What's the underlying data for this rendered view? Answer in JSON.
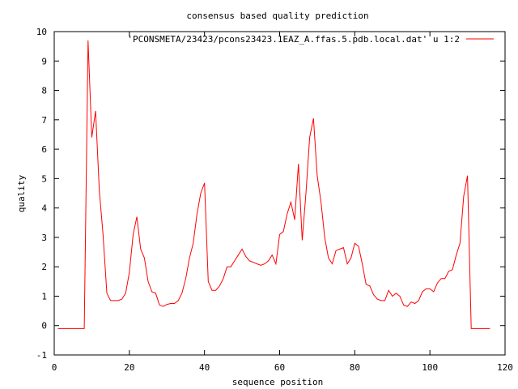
{
  "chart_data": {
    "type": "line",
    "title": "consensus based quality prediction",
    "xlabel": "sequence position",
    "ylabel": "quality",
    "xlim": [
      0,
      120
    ],
    "ylim": [
      -1,
      10
    ],
    "xticks": [
      "0",
      "20",
      "40",
      "60",
      "80",
      "100",
      "120"
    ],
    "yticks": [
      "-1",
      "0",
      "1",
      "2",
      "3",
      "4",
      "5",
      "6",
      "7",
      "8",
      "9",
      "10"
    ],
    "grid": false,
    "legend_position": "top-right",
    "series": [
      {
        "name": "'PCONSMETA/23423/pcons23423.1EAZ_A.ffas.5.pdb.local.dat' u 1:2",
        "color": "#ff0000",
        "x": [
          1,
          2,
          3,
          4,
          5,
          6,
          7,
          8,
          9,
          10,
          11,
          12,
          13,
          14,
          15,
          16,
          17,
          18,
          19,
          20,
          21,
          22,
          23,
          24,
          25,
          26,
          27,
          28,
          29,
          30,
          31,
          32,
          33,
          34,
          35,
          36,
          37,
          38,
          39,
          40,
          41,
          42,
          43,
          44,
          45,
          46,
          47,
          48,
          49,
          50,
          51,
          52,
          53,
          54,
          55,
          56,
          57,
          58,
          59,
          60,
          61,
          62,
          63,
          64,
          65,
          66,
          67,
          68,
          69,
          70,
          71,
          72,
          73,
          74,
          75,
          76,
          77,
          78,
          79,
          80,
          81,
          82,
          83,
          84,
          85,
          86,
          87,
          88,
          89,
          90,
          91,
          92,
          93,
          94,
          95,
          96,
          97,
          98,
          99,
          100,
          101,
          102,
          103,
          104,
          105,
          106,
          107,
          108,
          109,
          110,
          111,
          112,
          113,
          114,
          115,
          116
        ],
        "y": [
          -0.1,
          -0.1,
          -0.1,
          -0.1,
          -0.1,
          -0.1,
          -0.1,
          -0.1,
          9.7,
          6.4,
          7.3,
          4.6,
          3.1,
          1.1,
          0.85,
          0.85,
          0.85,
          0.9,
          1.1,
          1.8,
          3.1,
          3.7,
          2.6,
          2.3,
          1.5,
          1.15,
          1.1,
          0.7,
          0.65,
          0.72,
          0.75,
          0.75,
          0.85,
          1.1,
          1.6,
          2.3,
          2.8,
          3.8,
          4.5,
          4.85,
          1.5,
          1.2,
          1.2,
          1.35,
          1.6,
          2.0,
          2.0,
          2.2,
          2.4,
          2.6,
          2.35,
          2.2,
          2.15,
          2.1,
          2.05,
          2.1,
          2.2,
          2.4,
          2.1,
          3.1,
          3.2,
          3.8,
          4.2,
          3.6,
          5.5,
          2.9,
          4.5,
          6.4,
          7.05,
          5.1,
          4.2,
          3.0,
          2.3,
          2.1,
          2.55,
          2.6,
          2.65,
          2.1,
          2.3,
          2.8,
          2.7,
          2.1,
          1.4,
          1.35,
          1.05,
          0.9,
          0.85,
          0.85,
          1.2,
          1.0,
          1.1,
          1.0,
          0.7,
          0.65,
          0.8,
          0.75,
          0.85,
          1.15,
          1.25,
          1.25,
          1.15,
          1.45,
          1.6,
          1.6,
          1.85,
          1.9,
          2.4,
          2.8,
          4.4,
          5.1,
          -0.1,
          -0.1,
          -0.1,
          -0.1,
          -0.1,
          -0.1
        ]
      }
    ]
  }
}
